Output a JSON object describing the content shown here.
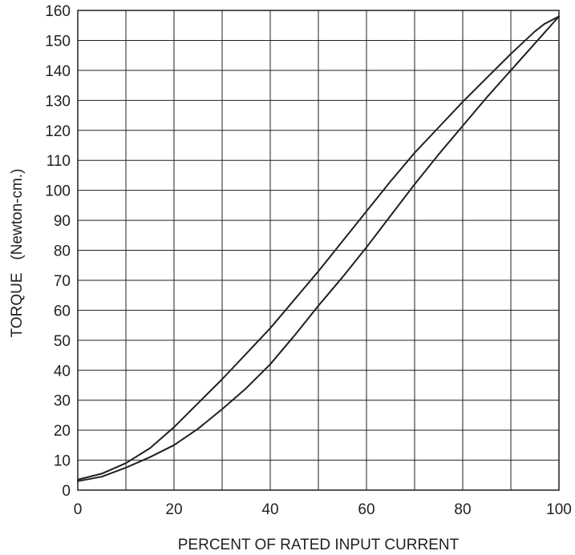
{
  "chart_data": {
    "type": "line",
    "title": "",
    "xlabel": "PERCENT OF RATED INPUT CURRENT",
    "ylabel": "TORQUE   (Newton-cm.)",
    "xlim": [
      0,
      100
    ],
    "ylim": [
      0,
      160
    ],
    "x_ticks": [
      0,
      20,
      40,
      60,
      80,
      100
    ],
    "y_ticks": [
      0,
      10,
      20,
      30,
      40,
      50,
      60,
      70,
      80,
      90,
      100,
      110,
      120,
      130,
      140,
      150,
      160
    ],
    "grid": true,
    "legend": "none",
    "line_color": "#231f20",
    "series": [
      {
        "values_xy": [
          [
            0,
            3.5
          ],
          [
            5,
            5.5
          ],
          [
            10,
            9
          ],
          [
            15,
            14
          ],
          [
            20,
            21
          ],
          [
            25,
            29
          ],
          [
            30,
            37
          ],
          [
            35,
            45.5
          ],
          [
            40,
            54
          ],
          [
            45,
            63.5
          ],
          [
            50,
            73
          ],
          [
            55,
            83
          ],
          [
            60,
            93
          ],
          [
            65,
            103
          ],
          [
            70,
            112.5
          ],
          [
            75,
            121
          ],
          [
            80,
            129.5
          ],
          [
            85,
            137.5
          ],
          [
            90,
            145.5
          ],
          [
            95,
            153
          ],
          [
            97,
            155.5
          ],
          [
            100,
            158
          ]
        ]
      },
      {
        "values_xy": [
          [
            0,
            3
          ],
          [
            5,
            4.5
          ],
          [
            10,
            7.5
          ],
          [
            15,
            11
          ],
          [
            20,
            15
          ],
          [
            25,
            20.5
          ],
          [
            30,
            27
          ],
          [
            35,
            34
          ],
          [
            40,
            42
          ],
          [
            45,
            51.5
          ],
          [
            50,
            61.5
          ],
          [
            55,
            71
          ],
          [
            60,
            81
          ],
          [
            65,
            91.5
          ],
          [
            70,
            102
          ],
          [
            75,
            112
          ],
          [
            80,
            121.5
          ],
          [
            85,
            131
          ],
          [
            90,
            140
          ],
          [
            95,
            149
          ],
          [
            100,
            158
          ]
        ]
      }
    ]
  }
}
